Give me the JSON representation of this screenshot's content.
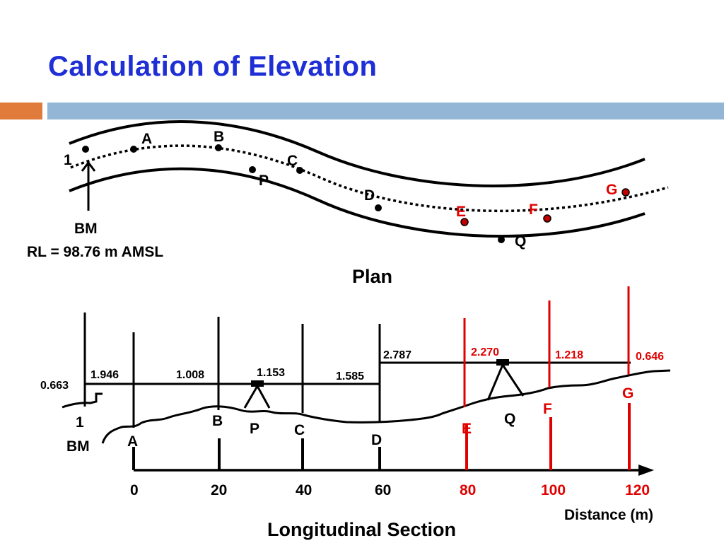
{
  "slide": {
    "title": "Calculation of Elevation"
  },
  "colors": {
    "title": "#1f2fd6",
    "accent_orange": "#e07b3c",
    "accent_blue": "#93b6d6",
    "highlight": "#e00000",
    "ink": "#000000"
  },
  "plan": {
    "caption": "Plan",
    "bm_label": "BM",
    "rl_label": "RL = 98.76 m AMSL",
    "points": {
      "p1": "1",
      "A": "A",
      "B": "B",
      "C": "C",
      "P": "P",
      "D": "D",
      "E": "E",
      "F": "F",
      "G": "G",
      "Q": "Q"
    }
  },
  "section": {
    "caption": "Longitudinal Section",
    "axis_label": "Distance (m)",
    "readings": {
      "r0663": "0.663",
      "r1946": "1.946",
      "r1008": "1.008",
      "r1153": "1.153",
      "r1585": "1.585",
      "r2787": "2.787",
      "r2270": "2.270",
      "r1218": "1.218",
      "r0646": "0.646"
    },
    "labels": {
      "l1": "1",
      "BM": "BM",
      "A": "A",
      "B": "B",
      "P": "P",
      "C": "C",
      "D": "D",
      "E": "E",
      "Q": "Q",
      "F": "F",
      "G": "G"
    },
    "ticks": {
      "t0": "0",
      "t20": "20",
      "t40": "40",
      "t60": "60",
      "t80": "80",
      "t100": "100",
      "t120": "120"
    }
  }
}
